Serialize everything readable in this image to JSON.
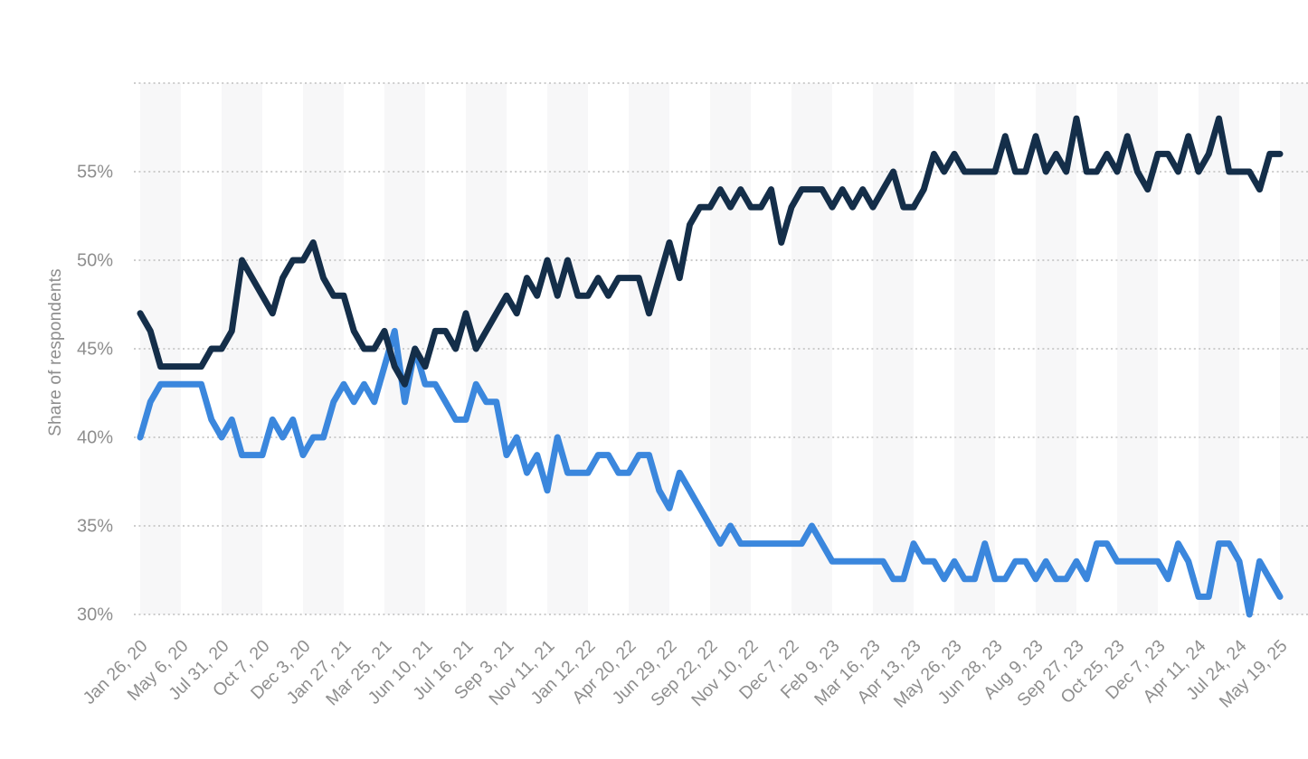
{
  "chart_data": {
    "type": "line",
    "title": "",
    "xlabel": "",
    "ylabel": "Share of respondents",
    "y_axis": {
      "unit": "%",
      "tick_values": [
        55,
        50,
        45,
        40,
        35,
        30
      ],
      "tick_labels": [
        "55%",
        "50%",
        "45%",
        "40%",
        "35%",
        "30%"
      ],
      "gridline_values": [
        60,
        55,
        50,
        45,
        40,
        35,
        30
      ],
      "ylim": [
        30,
        60
      ],
      "grid": "dotted"
    },
    "x_axis": {
      "tick_labels": [
        "Jan 26, 20",
        "May 6, 20",
        "Jul 31, 20",
        "Oct 7, 20",
        "Dec 3, 20",
        "Jan 27, 21",
        "Mar 25, 21",
        "Jun 10, 21",
        "Jul 16, 21",
        "Sep 3, 21",
        "Nov 11, 21",
        "Jan 12, 22",
        "Apr 20, 22",
        "Jun 29, 22",
        "Sep 22, 22",
        "Nov 10, 22",
        "Dec 7, 22",
        "Feb 9, 23",
        "Mar 16, 23",
        "Apr 13, 23",
        "May 26, 23",
        "Jun 28, 23",
        "Aug 9, 23",
        "Sep 27, 23",
        "Oct 25, 23",
        "Dec 7, 23",
        "Apr 11, 24",
        "Jul 24, 24",
        "May 19, 25"
      ],
      "points_per_label_interval": 4,
      "label_rotation_deg": -45
    },
    "legend": "none",
    "series": [
      {
        "name": "dark-navy-series",
        "color": "#142e49",
        "values": [
          47,
          46,
          44,
          44,
          44,
          44,
          44,
          45,
          45,
          46,
          50,
          49,
          48,
          47,
          49,
          50,
          50,
          51,
          49,
          48,
          48,
          46,
          45,
          45,
          46,
          44,
          43,
          45,
          44,
          46,
          46,
          45,
          47,
          45,
          46,
          47,
          48,
          47,
          49,
          48,
          50,
          48,
          50,
          48,
          48,
          49,
          48,
          49,
          49,
          49,
          47,
          49,
          51,
          49,
          52,
          53,
          53,
          54,
          53,
          54,
          53,
          53,
          54,
          51,
          53,
          54,
          54,
          54,
          53,
          54,
          53,
          54,
          53,
          54,
          55,
          53,
          53,
          54,
          56,
          55,
          56,
          55,
          55,
          55,
          55,
          57,
          55,
          55,
          57,
          55,
          56,
          55,
          58,
          55,
          55,
          56,
          55,
          57,
          55,
          54,
          56,
          56,
          55,
          57,
          55,
          56,
          58,
          55,
          55,
          55,
          54,
          56,
          56
        ]
      },
      {
        "name": "blue-series",
        "color": "#3b87dd",
        "values": [
          40,
          42,
          43,
          43,
          43,
          43,
          43,
          41,
          40,
          41,
          39,
          39,
          39,
          41,
          40,
          41,
          39,
          40,
          40,
          42,
          43,
          42,
          43,
          42,
          44,
          46,
          42,
          45,
          43,
          43,
          42,
          41,
          41,
          43,
          42,
          42,
          39,
          40,
          38,
          39,
          37,
          40,
          38,
          38,
          38,
          39,
          39,
          38,
          38,
          39,
          39,
          37,
          36,
          38,
          37,
          36,
          35,
          34,
          35,
          34,
          34,
          34,
          34,
          34,
          34,
          34,
          35,
          34,
          33,
          33,
          33,
          33,
          33,
          33,
          32,
          32,
          34,
          33,
          33,
          32,
          33,
          32,
          32,
          34,
          32,
          32,
          33,
          33,
          32,
          33,
          32,
          32,
          33,
          32,
          34,
          34,
          33,
          33,
          33,
          33,
          33,
          32,
          34,
          33,
          31,
          31,
          34,
          34,
          33,
          30,
          33,
          32,
          31
        ]
      }
    ],
    "style": {
      "background_color": "#ffffff",
      "plot_band_color": "#f7f7f8",
      "gridline_color": "#cdcdcd",
      "tick_label_color": "#8e8e8e",
      "axis_title_color": "#8d8d8d",
      "line_width": 7
    }
  }
}
